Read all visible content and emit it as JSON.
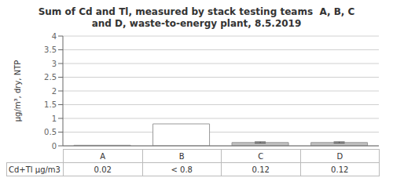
{
  "chart_data": {
    "type": "bar",
    "title": "Sum of Cd and Tl, measured by stack testing teams  A, B, C\nand D, waste-to-energy plant, 8.5.2019",
    "ylabel": "μg/m³, dry, NTP",
    "categories": [
      "A",
      "B",
      "C",
      "D"
    ],
    "values": [
      0.02,
      0.8,
      0.12,
      0.12
    ],
    "errors": [
      0.0,
      0.0,
      0.025,
      0.025
    ],
    "colors": [
      "#c8c8c8",
      "#ffffff",
      "#c0c0c0",
      "#c0c0c0"
    ],
    "ylim": [
      0,
      4
    ],
    "yticks": [
      0,
      0.5,
      1,
      1.5,
      2,
      2.5,
      3,
      3.5,
      4
    ],
    "grid": true,
    "table_row_label": "Cd+Tl μg/m3",
    "table_values": [
      "0.02",
      "< 0.8",
      "0.12",
      "0.12"
    ]
  }
}
